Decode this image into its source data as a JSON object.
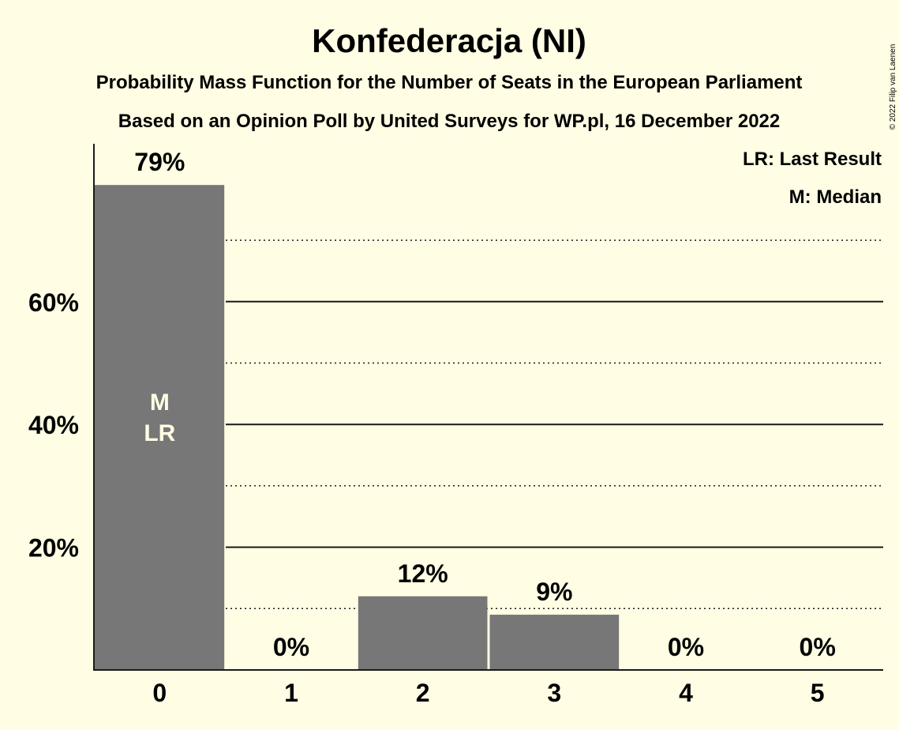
{
  "chart_data": {
    "type": "bar",
    "title": "Konfederacja (NI)",
    "subtitle_1": "Probability Mass Function for the Number of Seats in the European Parliament",
    "subtitle_2": "Based on an Opinion Poll by United Surveys for WP.pl, 16 December 2022",
    "categories": [
      "0",
      "1",
      "2",
      "3",
      "4",
      "5"
    ],
    "values": [
      79,
      0,
      12,
      9,
      0,
      0
    ],
    "value_labels": [
      "79%",
      "0%",
      "12%",
      "9%",
      "0%",
      "0%"
    ],
    "bar_color": "#777777",
    "ylim": [
      0,
      86
    ],
    "yticks": [
      {
        "value": 20,
        "label": "20%"
      },
      {
        "value": 40,
        "label": "40%"
      },
      {
        "value": 60,
        "label": "60%"
      }
    ],
    "dotted_gridlines": [
      10,
      30,
      50,
      70
    ],
    "markers": [
      {
        "category": "0",
        "lines": [
          "M",
          "LR"
        ]
      }
    ],
    "legend": [
      "LR: Last Result",
      "M: Median"
    ],
    "legend_position": "top-right",
    "copyright": "© 2022 Filip van Laenen"
  }
}
